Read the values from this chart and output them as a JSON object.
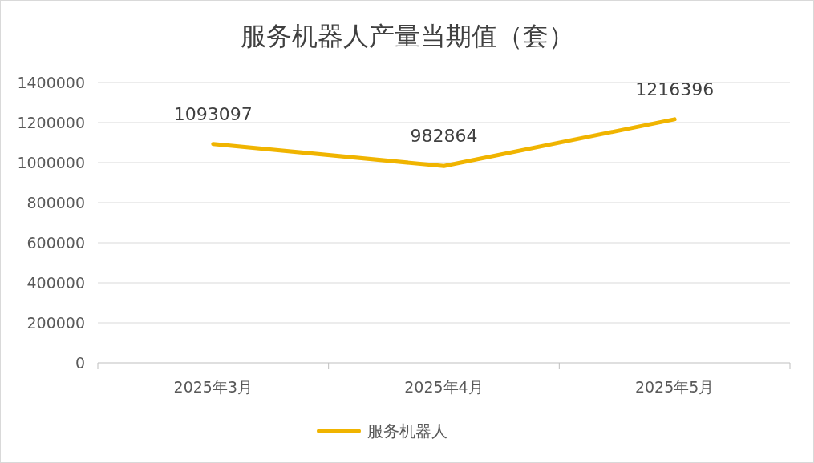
{
  "chart_data": {
    "type": "line",
    "title": "服务机器人产量当期值（套）",
    "categories": [
      "2025年3月",
      "2025年4月",
      "2025年5月"
    ],
    "series": [
      {
        "name": "服务机器人",
        "color": "#f0b400",
        "values": [
          1093097,
          982864,
          1216396
        ]
      }
    ],
    "ylim": [
      0,
      1400000
    ],
    "yticks": [
      0,
      200000,
      400000,
      600000,
      800000,
      1000000,
      1200000,
      1400000
    ],
    "grid": "y",
    "legend": "bottom",
    "data_labels": true
  }
}
